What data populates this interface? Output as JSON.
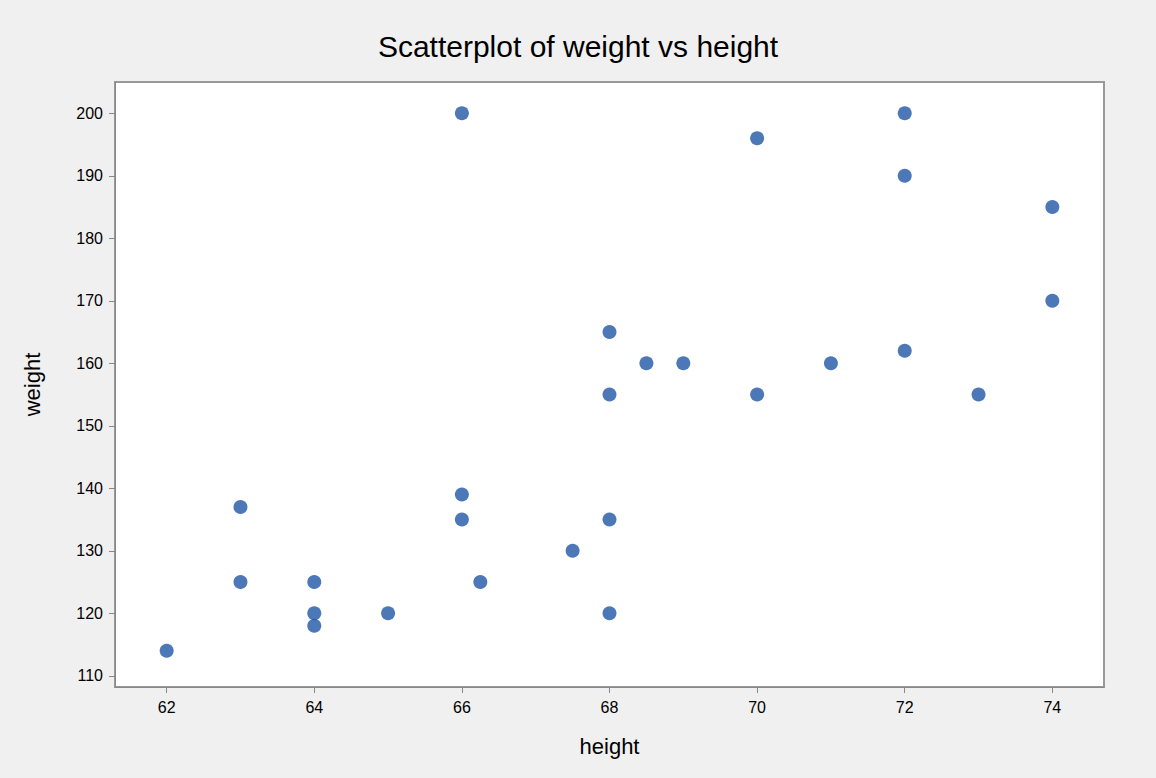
{
  "chart_data": {
    "type": "scatter",
    "title": "Scatterplot of weight vs height",
    "x_label": "height",
    "y_label": "weight",
    "x": [
      62,
      63,
      63,
      64,
      64,
      64,
      65,
      66,
      66,
      66,
      66.25,
      67.5,
      68,
      68,
      68,
      68,
      68.5,
      69,
      70,
      70,
      71,
      72,
      72,
      72,
      73,
      74,
      74
    ],
    "values": [
      114,
      137,
      125,
      125,
      120,
      118,
      120,
      200,
      139,
      135,
      125,
      130,
      165,
      155,
      135,
      120,
      160,
      160,
      196,
      155,
      160,
      200,
      190,
      162,
      155,
      185,
      170
    ],
    "color": "#2156a5",
    "marker": "circle",
    "xlim": [
      61.3,
      74.7
    ],
    "xticks": [
      62,
      64,
      66,
      68,
      70,
      72,
      74
    ],
    "ylim": [
      108.2,
      205
    ],
    "yticks": [
      110,
      120,
      130,
      140,
      150,
      160,
      170,
      180,
      190,
      200
    ],
    "grid": false
  }
}
